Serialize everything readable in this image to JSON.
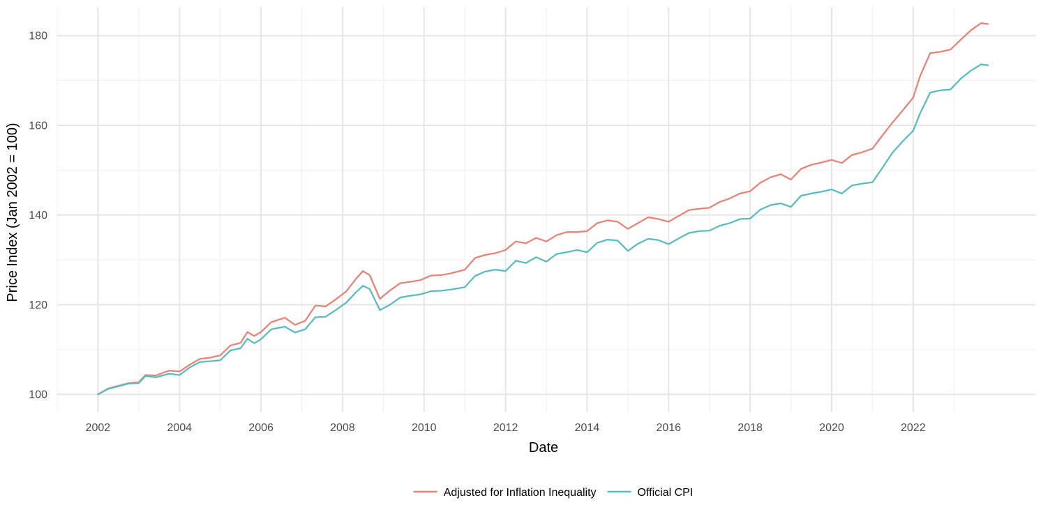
{
  "chart_data": {
    "type": "line",
    "title": "",
    "xlabel": "Date",
    "ylabel": "Price Index (Jan 2002 = 100)",
    "x_range": [
      "2001-01-01",
      "2024-12-31"
    ],
    "ylim": [
      96,
      186.4
    ],
    "x_ticks": [
      "2002",
      "2004",
      "2006",
      "2008",
      "2010",
      "2012",
      "2014",
      "2016",
      "2018",
      "2020",
      "2022"
    ],
    "y_ticks": [
      100,
      120,
      140,
      160,
      180
    ],
    "grid": true,
    "legend_position": "bottom",
    "series": [
      {
        "name": "Adjusted for Inflation Inequality",
        "color": "#e5857a",
        "points": [
          [
            "2002-01",
            100.0
          ],
          [
            "2002-04",
            101.3
          ],
          [
            "2002-07",
            101.9
          ],
          [
            "2002-10",
            102.5
          ],
          [
            "2003-01",
            102.7
          ],
          [
            "2003-03",
            104.3
          ],
          [
            "2003-06",
            104.2
          ],
          [
            "2003-10",
            105.3
          ],
          [
            "2004-01",
            105.1
          ],
          [
            "2004-04",
            106.6
          ],
          [
            "2004-07",
            107.9
          ],
          [
            "2004-10",
            108.2
          ],
          [
            "2005-01",
            108.7
          ],
          [
            "2005-04",
            110.9
          ],
          [
            "2005-07",
            111.5
          ],
          [
            "2005-09",
            113.9
          ],
          [
            "2005-11",
            113.0
          ],
          [
            "2006-01",
            113.9
          ],
          [
            "2006-04",
            116.1
          ],
          [
            "2006-08",
            117.1
          ],
          [
            "2006-11",
            115.5
          ],
          [
            "2007-02",
            116.4
          ],
          [
            "2007-05",
            119.8
          ],
          [
            "2007-08",
            119.6
          ],
          [
            "2007-11",
            121.2
          ],
          [
            "2008-02",
            122.9
          ],
          [
            "2008-05",
            125.8
          ],
          [
            "2008-07",
            127.5
          ],
          [
            "2008-09",
            126.6
          ],
          [
            "2008-12",
            121.3
          ],
          [
            "2009-03",
            123.2
          ],
          [
            "2009-06",
            124.8
          ],
          [
            "2009-09",
            125.1
          ],
          [
            "2009-12",
            125.5
          ],
          [
            "2010-03",
            126.5
          ],
          [
            "2010-06",
            126.6
          ],
          [
            "2010-09",
            127.0
          ],
          [
            "2011-01",
            127.8
          ],
          [
            "2011-04",
            130.4
          ],
          [
            "2011-07",
            131.1
          ],
          [
            "2011-10",
            131.5
          ],
          [
            "2012-01",
            132.2
          ],
          [
            "2012-04",
            134.1
          ],
          [
            "2012-07",
            133.7
          ],
          [
            "2012-10",
            134.9
          ],
          [
            "2013-01",
            134.1
          ],
          [
            "2013-04",
            135.5
          ],
          [
            "2013-07",
            136.2
          ],
          [
            "2013-10",
            136.2
          ],
          [
            "2014-01",
            136.4
          ],
          [
            "2014-04",
            138.2
          ],
          [
            "2014-07",
            138.8
          ],
          [
            "2014-10",
            138.5
          ],
          [
            "2015-01",
            136.9
          ],
          [
            "2015-04",
            138.2
          ],
          [
            "2015-07",
            139.5
          ],
          [
            "2015-10",
            139.1
          ],
          [
            "2016-01",
            138.5
          ],
          [
            "2016-04",
            139.8
          ],
          [
            "2016-07",
            141.1
          ],
          [
            "2016-10",
            141.4
          ],
          [
            "2017-01",
            141.6
          ],
          [
            "2017-04",
            142.9
          ],
          [
            "2017-07",
            143.7
          ],
          [
            "2017-10",
            144.8
          ],
          [
            "2018-01",
            145.3
          ],
          [
            "2018-04",
            147.2
          ],
          [
            "2018-07",
            148.4
          ],
          [
            "2018-10",
            149.1
          ],
          [
            "2019-01",
            147.9
          ],
          [
            "2019-04",
            150.3
          ],
          [
            "2019-07",
            151.2
          ],
          [
            "2019-10",
            151.7
          ],
          [
            "2020-01",
            152.3
          ],
          [
            "2020-04",
            151.6
          ],
          [
            "2020-07",
            153.4
          ],
          [
            "2020-10",
            154.0
          ],
          [
            "2021-01",
            154.8
          ],
          [
            "2021-04",
            157.8
          ],
          [
            "2021-07",
            160.7
          ],
          [
            "2021-10",
            163.4
          ],
          [
            "2022-01",
            166.2
          ],
          [
            "2022-03",
            170.9
          ],
          [
            "2022-06",
            176.1
          ],
          [
            "2022-09",
            176.4
          ],
          [
            "2022-12",
            176.9
          ],
          [
            "2023-03",
            179.1
          ],
          [
            "2023-06",
            181.2
          ],
          [
            "2023-09",
            182.8
          ],
          [
            "2023-11",
            182.6
          ]
        ]
      },
      {
        "name": "Official CPI",
        "color": "#5bbcbe",
        "points": [
          [
            "2002-01",
            100.0
          ],
          [
            "2002-04",
            101.2
          ],
          [
            "2002-07",
            101.8
          ],
          [
            "2002-10",
            102.4
          ],
          [
            "2003-01",
            102.5
          ],
          [
            "2003-03",
            104.1
          ],
          [
            "2003-06",
            103.8
          ],
          [
            "2003-10",
            104.6
          ],
          [
            "2004-01",
            104.3
          ],
          [
            "2004-04",
            106.0
          ],
          [
            "2004-07",
            107.2
          ],
          [
            "2004-10",
            107.4
          ],
          [
            "2005-01",
            107.6
          ],
          [
            "2005-04",
            109.8
          ],
          [
            "2005-07",
            110.3
          ],
          [
            "2005-09",
            112.4
          ],
          [
            "2005-11",
            111.4
          ],
          [
            "2006-01",
            112.3
          ],
          [
            "2006-04",
            114.5
          ],
          [
            "2006-08",
            115.1
          ],
          [
            "2006-11",
            113.8
          ],
          [
            "2007-02",
            114.5
          ],
          [
            "2007-05",
            117.2
          ],
          [
            "2007-08",
            117.3
          ],
          [
            "2007-11",
            118.8
          ],
          [
            "2008-02",
            120.4
          ],
          [
            "2008-05",
            122.8
          ],
          [
            "2008-07",
            124.2
          ],
          [
            "2008-09",
            123.5
          ],
          [
            "2008-12",
            118.8
          ],
          [
            "2009-03",
            120.0
          ],
          [
            "2009-06",
            121.6
          ],
          [
            "2009-09",
            122.0
          ],
          [
            "2009-12",
            122.3
          ],
          [
            "2010-03",
            123.0
          ],
          [
            "2010-06",
            123.1
          ],
          [
            "2010-09",
            123.4
          ],
          [
            "2011-01",
            123.9
          ],
          [
            "2011-04",
            126.4
          ],
          [
            "2011-07",
            127.4
          ],
          [
            "2011-10",
            127.8
          ],
          [
            "2012-01",
            127.5
          ],
          [
            "2012-04",
            129.8
          ],
          [
            "2012-07",
            129.3
          ],
          [
            "2012-10",
            130.6
          ],
          [
            "2013-01",
            129.6
          ],
          [
            "2013-04",
            131.3
          ],
          [
            "2013-07",
            131.7
          ],
          [
            "2013-10",
            132.2
          ],
          [
            "2014-01",
            131.7
          ],
          [
            "2014-04",
            133.8
          ],
          [
            "2014-07",
            134.5
          ],
          [
            "2014-10",
            134.3
          ],
          [
            "2015-01",
            132.0
          ],
          [
            "2015-04",
            133.6
          ],
          [
            "2015-07",
            134.7
          ],
          [
            "2015-10",
            134.4
          ],
          [
            "2016-01",
            133.5
          ],
          [
            "2016-04",
            134.8
          ],
          [
            "2016-07",
            136.0
          ],
          [
            "2016-10",
            136.4
          ],
          [
            "2017-01",
            136.5
          ],
          [
            "2017-04",
            137.6
          ],
          [
            "2017-07",
            138.2
          ],
          [
            "2017-10",
            139.1
          ],
          [
            "2018-01",
            139.2
          ],
          [
            "2018-04",
            141.2
          ],
          [
            "2018-07",
            142.2
          ],
          [
            "2018-10",
            142.6
          ],
          [
            "2019-01",
            141.8
          ],
          [
            "2019-04",
            144.3
          ],
          [
            "2019-07",
            144.8
          ],
          [
            "2019-10",
            145.2
          ],
          [
            "2020-01",
            145.7
          ],
          [
            "2020-04",
            144.8
          ],
          [
            "2020-07",
            146.6
          ],
          [
            "2020-10",
            147.0
          ],
          [
            "2021-01",
            147.3
          ],
          [
            "2021-04",
            150.6
          ],
          [
            "2021-07",
            154.0
          ],
          [
            "2021-10",
            156.5
          ],
          [
            "2022-01",
            158.8
          ],
          [
            "2022-03",
            162.6
          ],
          [
            "2022-06",
            167.3
          ],
          [
            "2022-09",
            167.8
          ],
          [
            "2022-12",
            168.0
          ],
          [
            "2023-03",
            170.4
          ],
          [
            "2023-06",
            172.2
          ],
          [
            "2023-09",
            173.6
          ],
          [
            "2023-11",
            173.4
          ]
        ]
      }
    ]
  }
}
